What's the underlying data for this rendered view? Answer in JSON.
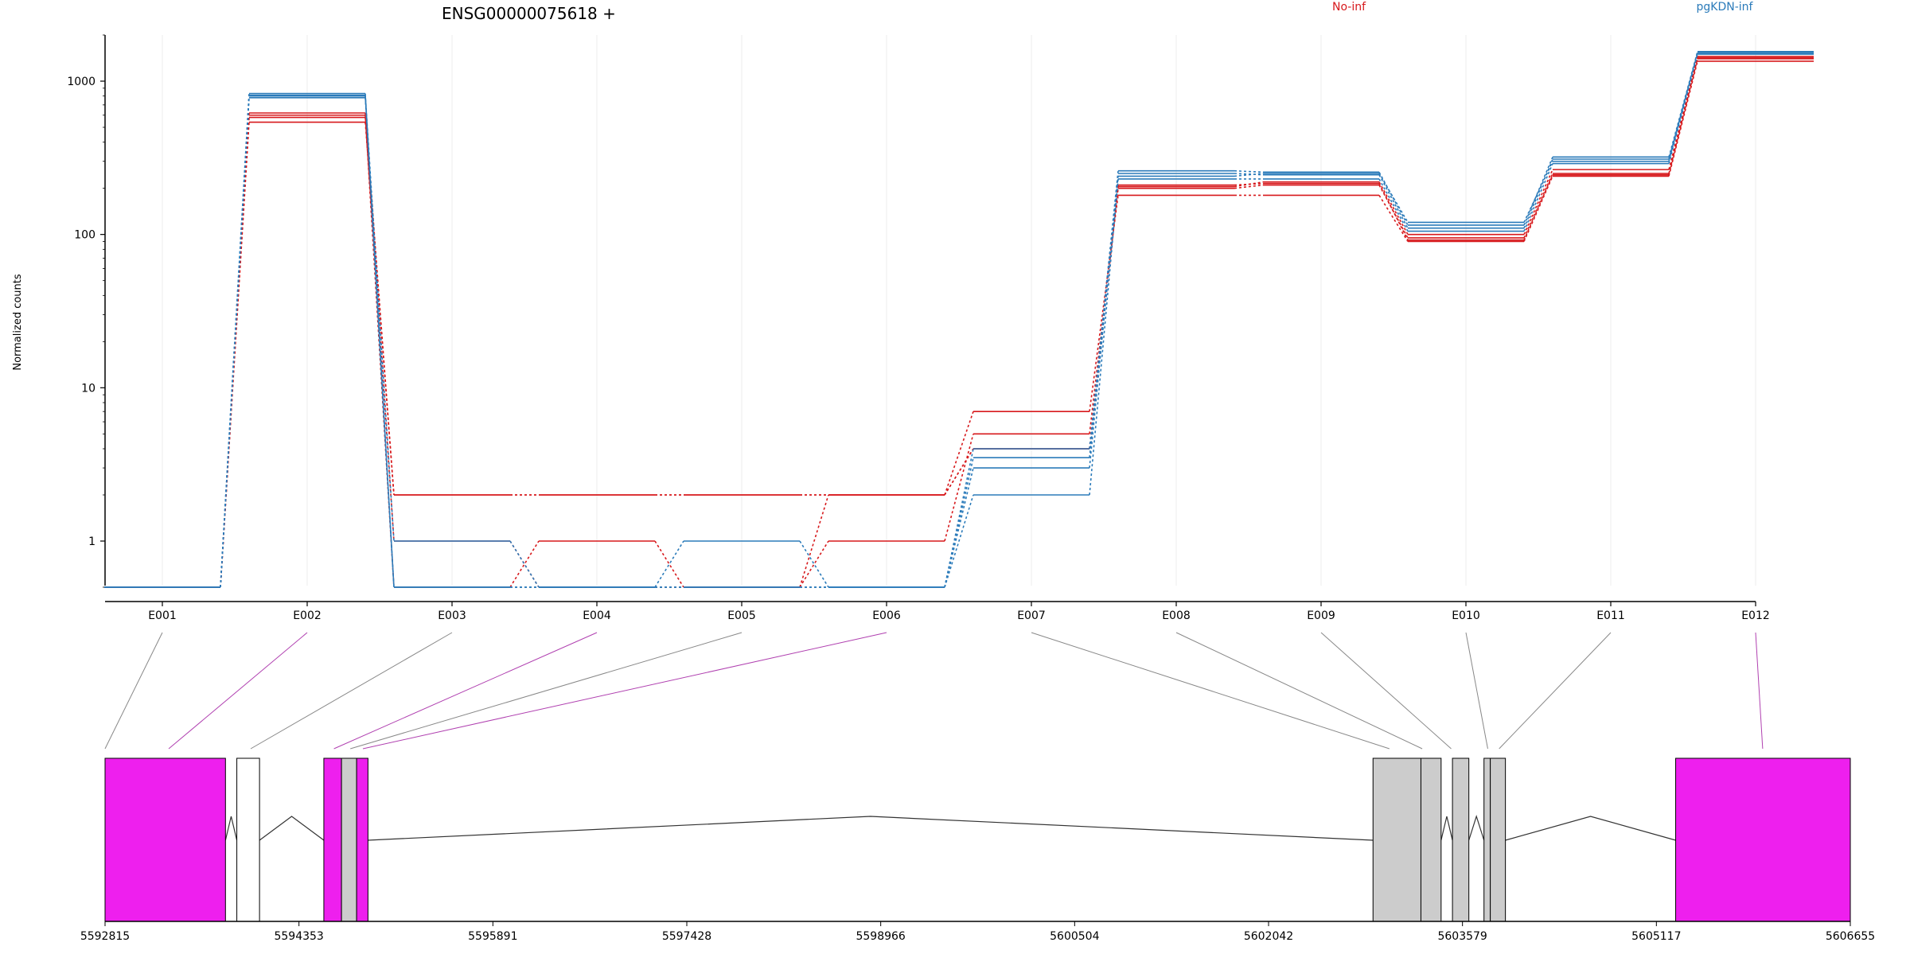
{
  "chart_data": {
    "type": "line",
    "title": "ENSG00000075618 +",
    "ylabel": "Normalized counts",
    "yscale": "log",
    "ylim": [
      0.5,
      2000
    ],
    "y_ticks": [
      1,
      10,
      100,
      1000
    ],
    "y_tick_labels": [
      "1",
      "10",
      "100",
      "1000"
    ],
    "categories": [
      "E001",
      "E002",
      "E003",
      "E004",
      "E005",
      "E006",
      "E007",
      "E008",
      "E009",
      "E010",
      "E011",
      "E012"
    ],
    "legend": [
      {
        "name": "No-inf",
        "color": "#d7191c"
      },
      {
        "name": "pgKDN-inf",
        "color": "#2b7bba"
      }
    ],
    "grid": true,
    "series": [
      {
        "group": "No-inf",
        "color": "#d7191c",
        "values": [
          0.5,
          540,
          2,
          2,
          2,
          2,
          7,
          180,
          180,
          90,
          240,
          1350
        ]
      },
      {
        "group": "No-inf",
        "color": "#d7191c",
        "values": [
          0.5,
          580,
          1,
          0.5,
          0.5,
          1,
          5,
          200,
          210,
          95,
          250,
          1400
        ]
      },
      {
        "group": "No-inf",
        "color": "#d7191c",
        "values": [
          0.5,
          600,
          0.5,
          1,
          0.5,
          2,
          4,
          205,
          220,
          100,
          265,
          1450
        ]
      },
      {
        "group": "No-inf",
        "color": "#d7191c",
        "values": [
          0.5,
          620,
          2,
          2,
          2,
          2,
          4,
          210,
          215,
          92,
          245,
          1420
        ]
      },
      {
        "group": "pgKDN-inf",
        "color": "#2b7bba",
        "values": [
          0.5,
          780,
          0.5,
          0.5,
          0.5,
          0.5,
          2,
          230,
          230,
          105,
          290,
          1500
        ]
      },
      {
        "group": "pgKDN-inf",
        "color": "#2b7bba",
        "values": [
          0.5,
          810,
          1,
          0.5,
          1,
          0.5,
          3,
          250,
          245,
          110,
          310,
          1520
        ]
      },
      {
        "group": "pgKDN-inf",
        "color": "#2b7bba",
        "values": [
          0.5,
          830,
          0.5,
          0.5,
          0.5,
          0.5,
          4,
          260,
          255,
          115,
          320,
          1550
        ]
      },
      {
        "group": "pgKDN-inf",
        "color": "#2b7bba",
        "values": [
          0.5,
          800,
          0.5,
          0.5,
          0.5,
          0.5,
          3.5,
          240,
          250,
          120,
          300,
          1560
        ]
      }
    ],
    "gene_model": {
      "start": 5592815,
      "end": 5606655,
      "tick_labels": [
        "5592815",
        "5594353",
        "5595891",
        "5597428",
        "5598966",
        "5600504",
        "5602042",
        "5603579",
        "5605117",
        "5606655"
      ],
      "exons": [
        {
          "id": "E001",
          "start": 5592815,
          "end": 5593770,
          "fill": "#ee1fee"
        },
        {
          "id": "E002",
          "start": 5593860,
          "end": 5594040,
          "fill": "#ffffff"
        },
        {
          "id": "E003",
          "start": 5594550,
          "end": 5594690,
          "fill": "#ee1fee"
        },
        {
          "id": "E004",
          "start": 5594690,
          "end": 5594810,
          "fill": "#cccccc"
        },
        {
          "id": "E005",
          "start": 5594810,
          "end": 5594900,
          "fill": "#ee1fee"
        },
        {
          "id": "E007",
          "start": 5602870,
          "end": 5603250,
          "fill": "#cccccc"
        },
        {
          "id": "E008",
          "start": 5603250,
          "end": 5603410,
          "fill": "#cccccc"
        },
        {
          "id": "E009",
          "start": 5603500,
          "end": 5603630,
          "fill": "#cccccc"
        },
        {
          "id": "E010",
          "start": 5603750,
          "end": 5603800,
          "fill": "#cccccc"
        },
        {
          "id": "E011",
          "start": 5603800,
          "end": 5603920,
          "fill": "#cccccc"
        },
        {
          "id": "E012",
          "start": 5605270,
          "end": 5606655,
          "fill": "#ee1fee"
        }
      ],
      "connectors": [
        {
          "id": "E001",
          "gpos": 5592815,
          "color": "#888888"
        },
        {
          "id": "E002",
          "gpos": 5593320,
          "color": "#b040b0"
        },
        {
          "id": "E003",
          "gpos": 5593970,
          "color": "#888888"
        },
        {
          "id": "E004",
          "gpos": 5594630,
          "color": "#b040b0"
        },
        {
          "id": "E005",
          "gpos": 5594760,
          "color": "#888888"
        },
        {
          "id": "E006",
          "gpos": 5594860,
          "color": "#b040b0"
        },
        {
          "id": "E007",
          "gpos": 5603000,
          "color": "#888888"
        },
        {
          "id": "E008",
          "gpos": 5603260,
          "color": "#888888"
        },
        {
          "id": "E009",
          "gpos": 5603490,
          "color": "#888888"
        },
        {
          "id": "E010",
          "gpos": 5603780,
          "color": "#888888"
        },
        {
          "id": "E011",
          "gpos": 5603870,
          "color": "#888888"
        },
        {
          "id": "E012",
          "gpos": 5605960,
          "color": "#b040b0"
        }
      ]
    }
  }
}
